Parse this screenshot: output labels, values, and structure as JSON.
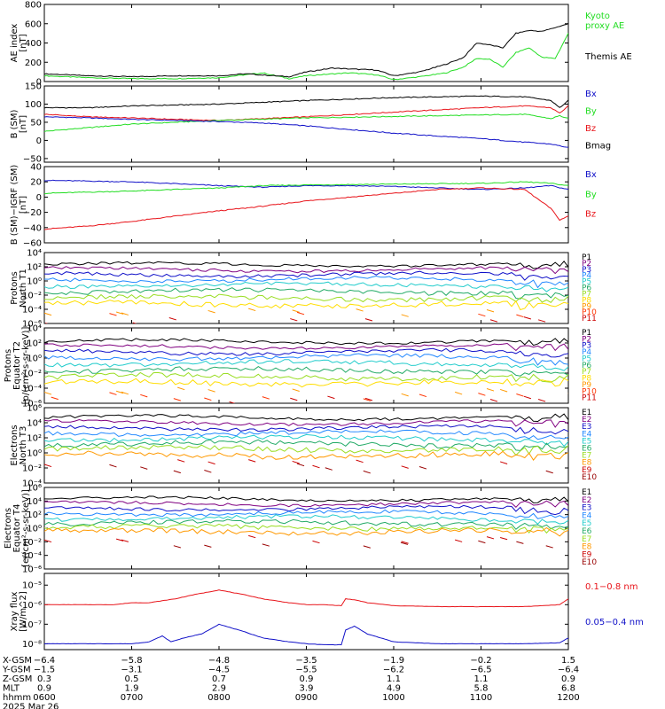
{
  "colors": {
    "black": "#000000",
    "red": "#e8141a",
    "green": "#22dd22",
    "blue": "#1010c8",
    "p1": "#000000",
    "p2": "#800080",
    "p3": "#1010c8",
    "p4": "#2288ff",
    "p5": "#22cccc",
    "p6": "#22aa66",
    "p7": "#99dd22",
    "p8": "#ffdd00",
    "p9": "#ff9900",
    "p10": "#ff3300",
    "p11": "#cc0000"
  },
  "chart_data": [
    {
      "id": "ae",
      "type": "line",
      "ylabel": [
        "AE index",
        "[nT]"
      ],
      "ylim": [
        0,
        800
      ],
      "yticks": [
        0,
        200,
        400,
        600,
        800
      ],
      "yticklabels": [
        "0",
        "200",
        "400",
        "600",
        "800"
      ],
      "series": [
        {
          "name": "Kyoto proxy AE",
          "color": "#22dd22",
          "x": [
            6.0,
            6.5,
            7.0,
            7.5,
            8.0,
            8.5,
            8.8,
            9.0,
            9.3,
            9.5,
            9.8,
            10.0,
            10.3,
            10.6,
            10.8,
            10.95,
            11.1,
            11.25,
            11.4,
            11.55,
            11.7,
            11.85,
            12.0
          ],
          "y": [
            60,
            40,
            30,
            30,
            40,
            90,
            30,
            60,
            80,
            90,
            70,
            20,
            50,
            90,
            150,
            240,
            230,
            150,
            300,
            350,
            250,
            240,
            500
          ]
        },
        {
          "name": "Themis AE",
          "color": "#000000",
          "x": [
            6.0,
            6.5,
            7.0,
            7.5,
            8.0,
            8.3,
            8.8,
            9.0,
            9.3,
            9.5,
            9.8,
            10.0,
            10.3,
            10.6,
            10.8,
            10.95,
            11.1,
            11.25,
            11.4,
            11.55,
            11.7,
            11.85,
            12.0
          ],
          "y": [
            80,
            60,
            50,
            60,
            60,
            80,
            50,
            100,
            140,
            130,
            120,
            60,
            100,
            180,
            250,
            400,
            380,
            350,
            500,
            530,
            520,
            560,
            600
          ]
        }
      ],
      "legend": [
        {
          "text": "Kyoto",
          "color": "#22dd22"
        },
        {
          "text": "proxy AE",
          "color": "#22dd22"
        },
        {
          "text": "Themis AE",
          "color": "#000000"
        }
      ]
    },
    {
      "id": "bsm",
      "type": "line",
      "ylabel": [
        "B (SM)",
        "[nT]"
      ],
      "ylim": [
        -60,
        150
      ],
      "yticks": [
        -50,
        0,
        50,
        100,
        150
      ],
      "yticklabels": [
        "−50",
        "0",
        "50",
        "100",
        "150"
      ],
      "series": [
        {
          "name": "Bmag",
          "color": "#000000",
          "x": [
            6.0,
            6.5,
            7.0,
            8.0,
            9.0,
            10.0,
            11.0,
            11.5,
            11.8,
            11.9,
            12.0
          ],
          "y": [
            90,
            90,
            95,
            100,
            110,
            118,
            122,
            120,
            110,
            90,
            110
          ]
        },
        {
          "name": "Bz",
          "color": "#e8141a",
          "x": [
            6.0,
            6.5,
            7.0,
            7.5,
            8.0,
            9.0,
            10.0,
            11.0,
            11.5,
            11.8,
            11.9,
            12.0
          ],
          "y": [
            72,
            65,
            62,
            58,
            55,
            65,
            78,
            90,
            95,
            90,
            75,
            95
          ]
        },
        {
          "name": "By",
          "color": "#22dd22",
          "x": [
            6.0,
            6.5,
            7.0,
            7.5,
            8.0,
            9.0,
            10.0,
            11.0,
            11.5,
            11.8,
            11.9,
            12.0
          ],
          "y": [
            25,
            35,
            45,
            50,
            55,
            62,
            66,
            70,
            72,
            60,
            68,
            60
          ]
        },
        {
          "name": "Bx",
          "color": "#1010c8",
          "x": [
            6.0,
            6.5,
            7.0,
            7.5,
            8.0,
            8.5,
            9.0,
            9.5,
            10.0,
            10.5,
            11.0,
            11.5,
            11.8,
            12.0
          ],
          "y": [
            65,
            62,
            58,
            55,
            52,
            48,
            40,
            30,
            20,
            12,
            5,
            -5,
            -10,
            -20
          ]
        }
      ],
      "legend": [
        {
          "text": "Bx",
          "color": "#1010c8"
        },
        {
          "text": "By",
          "color": "#22dd22"
        },
        {
          "text": "Bz",
          "color": "#e8141a"
        },
        {
          "text": "Bmag",
          "color": "#000000"
        }
      ]
    },
    {
      "id": "bigrf",
      "type": "line",
      "ylabel": [
        "B (SM)−IGRF (SM)",
        "[nT]"
      ],
      "ylim": [
        -60,
        40
      ],
      "yticks": [
        -60,
        -40,
        -20,
        0,
        20,
        40
      ],
      "yticklabels": [
        "−60",
        "−40",
        "−20",
        "0",
        "20",
        "40"
      ],
      "series": [
        {
          "name": "Bx",
          "color": "#1010c8",
          "x": [
            6.0,
            7.0,
            8.0,
            8.5,
            9.0,
            9.5,
            10.0,
            10.5,
            11.0,
            11.5,
            11.8,
            12.0
          ],
          "y": [
            22,
            20,
            15,
            13,
            15,
            15,
            14,
            12,
            10,
            12,
            15,
            10
          ]
        },
        {
          "name": "By",
          "color": "#22dd22",
          "x": [
            6.0,
            7.0,
            8.0,
            8.5,
            9.0,
            10.0,
            11.0,
            11.5,
            11.8,
            12.0
          ],
          "y": [
            5,
            8,
            12,
            15,
            16,
            17,
            18,
            20,
            18,
            15
          ]
        },
        {
          "name": "Bz",
          "color": "#e8141a",
          "x": [
            6.0,
            6.5,
            7.0,
            7.5,
            8.0,
            8.5,
            9.0,
            9.5,
            10.0,
            10.5,
            11.0,
            11.5,
            11.8,
            11.9,
            12.0
          ],
          "y": [
            -42,
            -38,
            -32,
            -25,
            -18,
            -12,
            -5,
            0,
            5,
            10,
            12,
            10,
            -15,
            -30,
            -25
          ]
        }
      ],
      "legend": [
        {
          "text": "Bx",
          "color": "#1010c8"
        },
        {
          "text": "By",
          "color": "#22dd22"
        },
        {
          "text": "Bz",
          "color": "#e8141a"
        }
      ]
    },
    {
      "id": "pnt1",
      "type": "line",
      "log": true,
      "ylabel": [
        "Protons",
        "North T1"
      ],
      "ylim": [
        -6,
        4
      ],
      "yticks": [
        4,
        2,
        0,
        -2,
        -4,
        -6
      ],
      "yticklabels": [
        "10⁴",
        "10²",
        "10⁰",
        "10⁻²",
        "10⁻⁴",
        "10⁻⁶"
      ],
      "channels": [
        {
          "name": "P1",
          "color": "#000000",
          "log_flux": 2.3
        },
        {
          "name": "P2",
          "color": "#800080",
          "log_flux": 1.6
        },
        {
          "name": "P3",
          "color": "#1010c8",
          "log_flux": 0.9
        },
        {
          "name": "P4",
          "color": "#2288ff",
          "log_flux": 0.2
        },
        {
          "name": "P5",
          "color": "#22cccc",
          "log_flux": -0.6
        },
        {
          "name": "P6",
          "color": "#22aa66",
          "log_flux": -1.5
        },
        {
          "name": "P7",
          "color": "#99dd22",
          "log_flux": -2.4
        },
        {
          "name": "P8",
          "color": "#ffdd00",
          "log_flux": -3.3
        },
        {
          "name": "P9",
          "color": "#ff9900",
          "log_flux": null
        },
        {
          "name": "P10",
          "color": "#ff3300",
          "log_flux": null
        },
        {
          "name": "P11",
          "color": "#cc0000",
          "log_flux": null
        }
      ]
    },
    {
      "id": "pet2",
      "type": "line",
      "log": true,
      "ylabel": [
        "Protons",
        "Equator T2",
        "[p/(cm²-s-sr-keV)]"
      ],
      "ylim": [
        -6,
        4
      ],
      "yticks": [
        4,
        2,
        0,
        -2,
        -4,
        -6
      ],
      "yticklabels": [
        "10⁴",
        "10²",
        "10⁰",
        "10⁻²",
        "10⁻⁴",
        "10⁻⁶"
      ],
      "channels": [
        {
          "name": "P1",
          "color": "#000000",
          "log_flux": 2.2
        },
        {
          "name": "P2",
          "color": "#800080",
          "log_flux": 1.5
        },
        {
          "name": "P3",
          "color": "#1010c8",
          "log_flux": 0.8
        },
        {
          "name": "P4",
          "color": "#2288ff",
          "log_flux": 0.1
        },
        {
          "name": "P5",
          "color": "#22cccc",
          "log_flux": -0.7
        },
        {
          "name": "P6",
          "color": "#22aa66",
          "log_flux": -1.6
        },
        {
          "name": "P7",
          "color": "#99dd22",
          "log_flux": -2.5
        },
        {
          "name": "P8",
          "color": "#ffdd00",
          "log_flux": -3.3
        },
        {
          "name": "P9",
          "color": "#ff9900",
          "log_flux": null
        },
        {
          "name": "P10",
          "color": "#ff3300",
          "log_flux": null
        },
        {
          "name": "P11",
          "color": "#cc0000",
          "log_flux": null
        }
      ]
    },
    {
      "id": "ent3",
      "type": "line",
      "log": true,
      "ylabel": [
        "Electrons",
        "North T3"
      ],
      "ylim": [
        -4,
        6
      ],
      "yticks": [
        6,
        4,
        2,
        0,
        -2,
        -4
      ],
      "yticklabels": [
        "10⁶",
        "10⁴",
        "10²",
        "10⁰",
        "10⁻²",
        "10⁻⁴"
      ],
      "channels": [
        {
          "name": "E1",
          "color": "#000000",
          "log_flux": 4.7
        },
        {
          "name": "E2",
          "color": "#800080",
          "log_flux": 4.0
        },
        {
          "name": "E3",
          "color": "#1010c8",
          "log_flux": 3.3
        },
        {
          "name": "E4",
          "color": "#2288ff",
          "log_flux": 2.6
        },
        {
          "name": "E5",
          "color": "#22cccc",
          "log_flux": 1.9
        },
        {
          "name": "E6",
          "color": "#22aa66",
          "log_flux": 1.2
        },
        {
          "name": "E7",
          "color": "#99dd22",
          "log_flux": 0.5
        },
        {
          "name": "E8",
          "color": "#ff9900",
          "log_flux": -0.3
        },
        {
          "name": "E9",
          "color": "#cc0000",
          "log_flux": null
        },
        {
          "name": "E10",
          "color": "#990000",
          "log_flux": null
        }
      ]
    },
    {
      "id": "eet4",
      "type": "line",
      "log": true,
      "ylabel": [
        "Electrons",
        "Equator T4",
        "[e/(cm²-s-sr-keV)]"
      ],
      "ylim": [
        -6,
        6
      ],
      "yticks": [
        6,
        4,
        2,
        0,
        -2,
        -4,
        -6
      ],
      "yticklabels": [
        "10⁶",
        "10⁴",
        "10²",
        "10⁰",
        "10⁻²",
        "10⁻⁴",
        "10⁻⁶"
      ],
      "channels": [
        {
          "name": "E1",
          "color": "#000000",
          "log_flux": 4.3
        },
        {
          "name": "E2",
          "color": "#800080",
          "log_flux": 3.6
        },
        {
          "name": "E3",
          "color": "#1010c8",
          "log_flux": 2.9
        },
        {
          "name": "E4",
          "color": "#2288ff",
          "log_flux": 2.2
        },
        {
          "name": "E5",
          "color": "#22cccc",
          "log_flux": 1.5
        },
        {
          "name": "E6",
          "color": "#22aa66",
          "log_flux": 0.8
        },
        {
          "name": "E7",
          "color": "#99dd22",
          "log_flux": 0.1
        },
        {
          "name": "E8",
          "color": "#ff9900",
          "log_flux": -0.5
        },
        {
          "name": "E9",
          "color": "#cc0000",
          "log_flux": null
        },
        {
          "name": "E10",
          "color": "#990000",
          "log_flux": null
        }
      ]
    },
    {
      "id": "xray",
      "type": "line",
      "log": true,
      "ylabel": [
        "Xray flux",
        "[W/m^2]"
      ],
      "ylim": [
        -8.3,
        -4.4
      ],
      "yticks": [
        -5,
        -6,
        -7,
        -8
      ],
      "yticklabels": [
        "10⁻⁵",
        "10⁻⁶",
        "10⁻⁷",
        "10⁻⁸"
      ],
      "series": [
        {
          "name": "0.1−0.8 nm",
          "color": "#e8141a",
          "x": [
            6.0,
            6.4,
            6.8,
            7.0,
            7.2,
            7.35,
            7.5,
            7.7,
            8.0,
            8.3,
            8.5,
            8.8,
            9.0,
            9.2,
            9.4,
            9.45,
            9.55,
            9.7,
            10.0,
            10.5,
            11.0,
            11.5,
            11.9,
            12.0
          ],
          "y": [
            -6.0,
            -6.0,
            -6.0,
            -5.9,
            -5.9,
            -5.8,
            -5.7,
            -5.5,
            -5.25,
            -5.5,
            -5.7,
            -5.9,
            -6.0,
            -6.0,
            -6.05,
            -5.7,
            -5.75,
            -5.9,
            -6.05,
            -6.1,
            -6.1,
            -6.1,
            -6.0,
            -5.7
          ]
        },
        {
          "name": "0.05−0.4 nm",
          "color": "#1010c8",
          "x": [
            6.0,
            6.4,
            6.8,
            7.0,
            7.2,
            7.35,
            7.45,
            7.6,
            7.8,
            8.0,
            8.3,
            8.5,
            8.8,
            9.0,
            9.2,
            9.4,
            9.45,
            9.55,
            9.7,
            10.0,
            10.5,
            11.0,
            11.5,
            11.9,
            12.0
          ],
          "y": [
            -8.0,
            -8.0,
            -8.0,
            -8.0,
            -7.9,
            -7.6,
            -7.9,
            -7.7,
            -7.5,
            -7.0,
            -7.4,
            -7.7,
            -7.9,
            -8.0,
            -8.05,
            -8.05,
            -7.3,
            -7.1,
            -7.5,
            -7.9,
            -8.0,
            -8.0,
            -8.0,
            -7.95,
            -7.7
          ]
        }
      ],
      "legend": [
        {
          "text": "0.1−0.8 nm",
          "color": "#e8141a"
        },
        {
          "text": "0.05−0.4 nm",
          "color": "#1010c8"
        }
      ]
    }
  ],
  "xaxis": {
    "range": [
      6.0,
      12.0
    ],
    "ticks": [
      6.0,
      7.0,
      8.0,
      9.0,
      10.0,
      11.0,
      12.0
    ],
    "rows": [
      {
        "label": "X-GSM",
        "values": [
          "−6.4",
          "−5.8",
          "−4.8",
          "−3.5",
          "−1.9",
          "−0.2",
          "1.5"
        ]
      },
      {
        "label": "Y-GSM",
        "values": [
          "−1.5",
          "−3.1",
          "−4.5",
          "−5.5",
          "−6.2",
          "−6.5",
          "−6.4"
        ]
      },
      {
        "label": "Z-GSM",
        "values": [
          "0.3",
          "0.5",
          "0.7",
          "0.9",
          "1.1",
          "1.1",
          "0.9"
        ]
      },
      {
        "label": "MLT",
        "values": [
          "0.9",
          "1.9",
          "2.9",
          "3.9",
          "4.9",
          "5.8",
          "6.8"
        ]
      },
      {
        "label": "hhmm",
        "values": [
          "0600",
          "0700",
          "0800",
          "0900",
          "1000",
          "1100",
          "1200"
        ]
      }
    ],
    "date": "2025 Mar 26"
  }
}
